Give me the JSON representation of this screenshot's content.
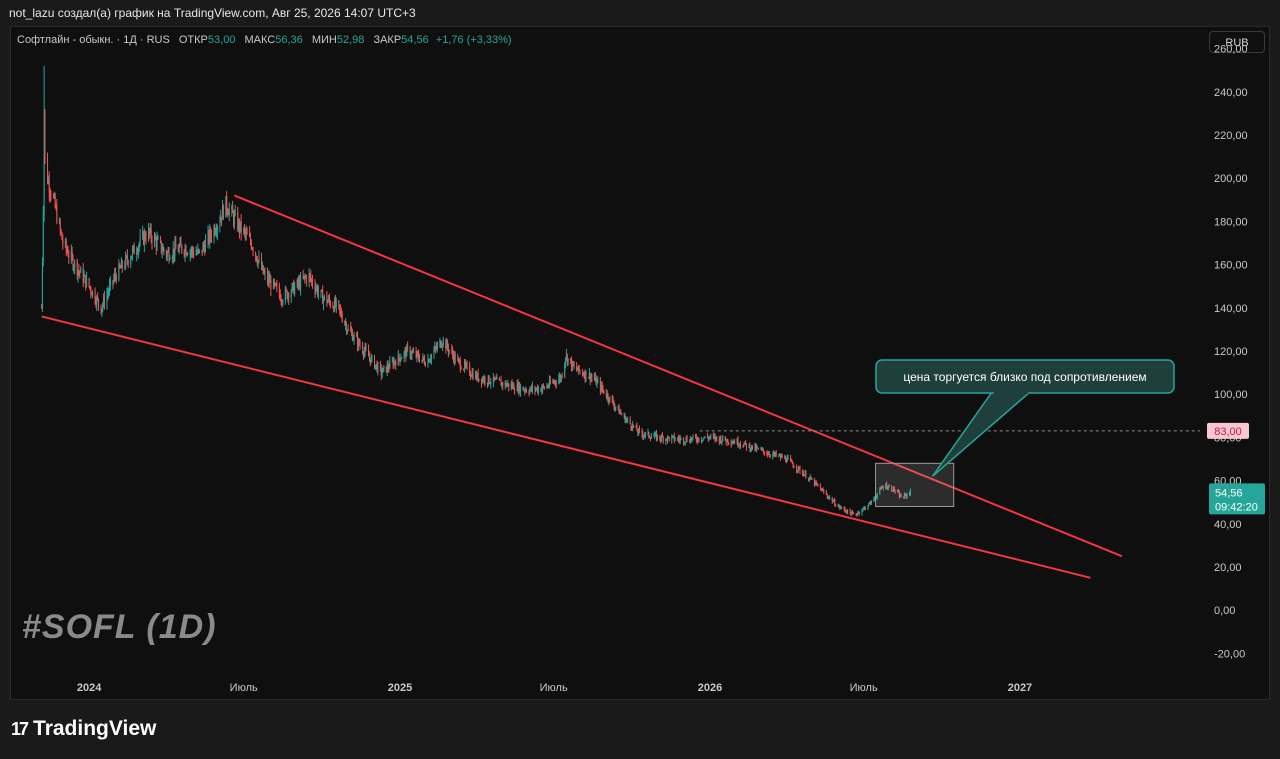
{
  "header": {
    "text": "not_lazu создал(а) график на TradingView.com, Авг 25, 2026 14:07 UTC+3"
  },
  "legend": {
    "symbol": "Софтлайн - обыкн. · 1Д · RUS",
    "open_label": "ОТКР",
    "open": "53,00",
    "high_label": "МАКС",
    "high": "56,36",
    "low_label": "МИН",
    "low": "52,98",
    "close_label": "ЗАКР",
    "close": "54,56",
    "change": "+1,76 (+3,33%)"
  },
  "currency_button": "RUB",
  "watermark": "#SOFL (1D)",
  "footer": {
    "brand": "TradingView",
    "logo_icon": "tradingview-logo-icon"
  },
  "colors": {
    "up": "#26a69a",
    "down": "#ef5350",
    "trendline": "#f23645",
    "callout_border": "#26a69a",
    "level_tag": "#f8c7d0",
    "price_tag": "#26a69a"
  },
  "chart_data": {
    "type": "candlestick",
    "ylim": [
      -30,
      270
    ],
    "y_ticks": [
      {
        "value": 260,
        "label": "260,00"
      },
      {
        "value": 240,
        "label": "240,00"
      },
      {
        "value": 220,
        "label": "220,00"
      },
      {
        "value": 200,
        "label": "200,00"
      },
      {
        "value": 180,
        "label": "180,00"
      },
      {
        "value": 160,
        "label": "160,00"
      },
      {
        "value": 140,
        "label": "140,00"
      },
      {
        "value": 120,
        "label": "120,00"
      },
      {
        "value": 100,
        "label": "100,00"
      },
      {
        "value": 80,
        "label": "80,00"
      },
      {
        "value": 60,
        "label": "60,00"
      },
      {
        "value": 40,
        "label": "40,00"
      },
      {
        "value": 20,
        "label": "20,00"
      },
      {
        "value": 0,
        "label": "0,00"
      },
      {
        "value": -20,
        "label": "-20,00"
      }
    ],
    "x_range": [
      "2023-10-01",
      "2027-08-01"
    ],
    "x_ticks": [
      {
        "date": "2024-01-01",
        "label": "2024"
      },
      {
        "date": "2024-07-01",
        "label": "Июль"
      },
      {
        "date": "2025-01-01",
        "label": "2025"
      },
      {
        "date": "2025-07-01",
        "label": "Июль"
      },
      {
        "date": "2026-01-01",
        "label": "2026"
      },
      {
        "date": "2026-07-01",
        "label": "Июль"
      },
      {
        "date": "2027-01-01",
        "label": "2027"
      }
    ],
    "price_path": [
      [
        "2023-11-06",
        140
      ],
      [
        "2023-11-09",
        210
      ],
      [
        "2023-11-13",
        200
      ],
      [
        "2023-11-20",
        190
      ],
      [
        "2023-12-01",
        170
      ],
      [
        "2023-12-15",
        160
      ],
      [
        "2024-01-01",
        150
      ],
      [
        "2024-01-15",
        140
      ],
      [
        "2024-02-01",
        155
      ],
      [
        "2024-02-20",
        165
      ],
      [
        "2024-03-10",
        175
      ],
      [
        "2024-04-01",
        165
      ],
      [
        "2024-04-20",
        168
      ],
      [
        "2024-05-10",
        165
      ],
      [
        "2024-06-01",
        180
      ],
      [
        "2024-06-10",
        188
      ],
      [
        "2024-06-25",
        178
      ],
      [
        "2024-07-10",
        170
      ],
      [
        "2024-07-25",
        155
      ],
      [
        "2024-08-15",
        145
      ],
      [
        "2024-09-01",
        150
      ],
      [
        "2024-09-15",
        155
      ],
      [
        "2024-10-01",
        145
      ],
      [
        "2024-10-20",
        140
      ],
      [
        "2024-11-01",
        130
      ],
      [
        "2024-11-20",
        120
      ],
      [
        "2024-12-10",
        110
      ],
      [
        "2024-12-25",
        115
      ],
      [
        "2025-01-10",
        120
      ],
      [
        "2025-02-01",
        115
      ],
      [
        "2025-02-20",
        125
      ],
      [
        "2025-03-10",
        115
      ],
      [
        "2025-04-01",
        108
      ],
      [
        "2025-05-01",
        105
      ],
      [
        "2025-06-01",
        102
      ],
      [
        "2025-06-20",
        103
      ],
      [
        "2025-07-10",
        108
      ],
      [
        "2025-07-15",
        118
      ],
      [
        "2025-07-25",
        112
      ],
      [
        "2025-08-15",
        108
      ],
      [
        "2025-09-01",
        100
      ],
      [
        "2025-09-20",
        90
      ],
      [
        "2025-10-10",
        82
      ],
      [
        "2025-11-01",
        80
      ],
      [
        "2025-12-01",
        79
      ],
      [
        "2026-01-01",
        80
      ],
      [
        "2026-02-01",
        78
      ],
      [
        "2026-03-01",
        74
      ],
      [
        "2026-04-01",
        70
      ],
      [
        "2026-05-01",
        60
      ],
      [
        "2026-06-01",
        48
      ],
      [
        "2026-06-20",
        44
      ],
      [
        "2026-07-01",
        47
      ],
      [
        "2026-07-10",
        50
      ],
      [
        "2026-07-25",
        58
      ],
      [
        "2026-08-05",
        56
      ],
      [
        "2026-08-15",
        52
      ],
      [
        "2026-08-25",
        54.56
      ]
    ],
    "last_candle": {
      "open": 53.0,
      "high": 56.36,
      "low": 52.98,
      "close": 54.56
    },
    "trendlines": [
      {
        "from": [
          "2024-06-20",
          192
        ],
        "to": [
          "2027-05-01",
          25
        ]
      },
      {
        "from": [
          "2023-11-06",
          136
        ],
        "to": [
          "2027-03-25",
          15
        ]
      }
    ],
    "horizontal_level": {
      "value": 83,
      "label": "83,00",
      "from": "2025-12-20"
    },
    "highlight_box": {
      "x0": "2026-07-15",
      "x1": "2026-10-15",
      "y0": 48,
      "y1": 68
    },
    "current_price": {
      "label": "54,56",
      "countdown": "09:42:20"
    },
    "annotation": "цена торгуется близко под сопротивлением",
    "annotation_anchor": [
      "2026-09-20",
      62
    ]
  }
}
